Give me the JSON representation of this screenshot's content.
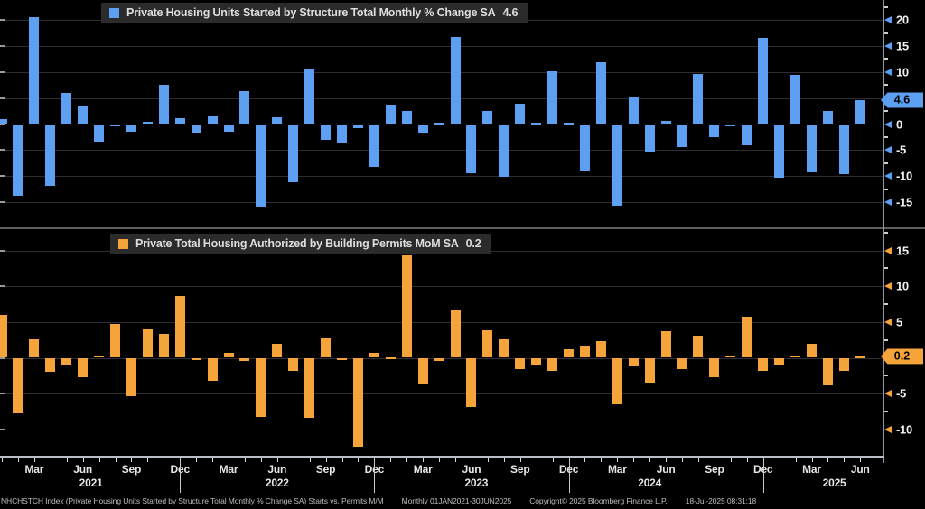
{
  "accent_colors": {
    "starts_blue": "#5d9ff0",
    "permits_orange": "#f5a43a",
    "grid": "#2f2f2f",
    "axis": "#8d9aa6"
  },
  "legends": {
    "starts": {
      "label": "Private Housing Units Started by Structure Total Monthly % Change SA",
      "value": "4.6",
      "swatch_color": "#5d9ff0"
    },
    "permits": {
      "label": "Private Total Housing Authorized by Building Permits MoM SA",
      "value": "0.2",
      "swatch_color": "#f5a43a"
    }
  },
  "chart_data": [
    {
      "id": "starts",
      "type": "bar",
      "title": "Private Housing Units Started by Structure Total Monthly % Change SA",
      "legend_position": "top-left-inside",
      "grid": true,
      "bar_color": "#5d9ff0",
      "ylim": [
        -19,
        24
      ],
      "yticks": [
        20,
        15,
        10,
        5,
        0,
        -5,
        -10,
        -15
      ],
      "hidden_tick_behind_badge": 5,
      "last_value_badge": "4.6",
      "last_value": 4.6,
      "categories": [
        "Jan 2021",
        "Feb 2021",
        "Mar 2021",
        "Apr 2021",
        "May 2021",
        "Jun 2021",
        "Jul 2021",
        "Aug 2021",
        "Sep 2021",
        "Oct 2021",
        "Nov 2021",
        "Dec 2021",
        "Jan 2022",
        "Feb 2022",
        "Mar 2022",
        "Apr 2022",
        "May 2022",
        "Jun 2022",
        "Jul 2022",
        "Aug 2022",
        "Sep 2022",
        "Oct 2022",
        "Nov 2022",
        "Dec 2022",
        "Jan 2023",
        "Feb 2023",
        "Mar 2023",
        "Apr 2023",
        "May 2023",
        "Jun 2023",
        "Jul 2023",
        "Aug 2023",
        "Sep 2023",
        "Oct 2023",
        "Nov 2023",
        "Dec 2023",
        "Jan 2024",
        "Feb 2024",
        "Mar 2024",
        "Apr 2024",
        "May 2024",
        "Jun 2024",
        "Jul 2024",
        "Aug 2024",
        "Sep 2024",
        "Oct 2024",
        "Nov 2024",
        "Dec 2024",
        "Jan 2025",
        "Feb 2025",
        "Mar 2025",
        "Apr 2025",
        "May 2025",
        "Jun 2025"
      ],
      "values": [
        1.0,
        -13.8,
        20.5,
        -11.9,
        5.9,
        3.5,
        -3.3,
        -0.4,
        -1.5,
        0.4,
        7.6,
        1.1,
        -1.7,
        1.7,
        -1.4,
        6.4,
        -15.8,
        1.3,
        -11.1,
        10.5,
        -3.0,
        -3.7,
        -0.7,
        -8.3,
        3.8,
        2.5,
        -1.7,
        0.3,
        16.8,
        -9.4,
        2.5,
        -10.1,
        3.9,
        0.3,
        10.2,
        0.2,
        -8.9,
        11.9,
        -15.7,
        5.2,
        -5.3,
        0.6,
        -4.4,
        9.6,
        -2.5,
        -0.5,
        -4.0,
        16.6,
        -10.3,
        9.5,
        -9.3,
        2.5,
        -9.7,
        4.6
      ]
    },
    {
      "id": "permits",
      "type": "bar",
      "title": "Private Total Housing Authorized by Building Permits MoM SA",
      "legend_position": "top-left-inside",
      "grid": true,
      "bar_color": "#f5a43a",
      "ylim": [
        -13.5,
        17.5
      ],
      "yticks": [
        15,
        10,
        5,
        0,
        -5,
        -10
      ],
      "hidden_tick_behind_badge": 0,
      "last_value_badge": "0.2",
      "last_value": 0.2,
      "categories": [
        "Jan 2021",
        "Feb 2021",
        "Mar 2021",
        "Apr 2021",
        "May 2021",
        "Jun 2021",
        "Jul 2021",
        "Aug 2021",
        "Sep 2021",
        "Oct 2021",
        "Nov 2021",
        "Dec 2021",
        "Jan 2022",
        "Feb 2022",
        "Mar 2022",
        "Apr 2022",
        "May 2022",
        "Jun 2022",
        "Jul 2022",
        "Aug 2022",
        "Sep 2022",
        "Oct 2022",
        "Nov 2022",
        "Dec 2022",
        "Jan 2023",
        "Feb 2023",
        "Mar 2023",
        "Apr 2023",
        "May 2023",
        "Jun 2023",
        "Jul 2023",
        "Aug 2023",
        "Sep 2023",
        "Oct 2023",
        "Nov 2023",
        "Dec 2023",
        "Jan 2024",
        "Feb 2024",
        "Mar 2024",
        "Apr 2024",
        "May 2024",
        "Jun 2024",
        "Jul 2024",
        "Aug 2024",
        "Sep 2024",
        "Oct 2024",
        "Nov 2024",
        "Dec 2024",
        "Jan 2025",
        "Feb 2025",
        "Mar 2025",
        "Apr 2025",
        "May 2025",
        "Jun 2025"
      ],
      "values": [
        6.0,
        -7.7,
        2.6,
        -1.9,
        -0.9,
        -2.7,
        0.3,
        4.7,
        -5.4,
        4.0,
        3.4,
        8.7,
        -0.1,
        -3.2,
        0.7,
        -0.4,
        -8.2,
        2.0,
        -1.8,
        -8.4,
        2.7,
        -0.2,
        -12.4,
        0.7,
        0.1,
        14.3,
        -3.7,
        -0.4,
        6.8,
        -6.9,
        3.9,
        2.6,
        -1.6,
        -0.9,
        -1.8,
        1.2,
        1.7,
        2.3,
        -6.5,
        -1.1,
        -3.5,
        3.7,
        -1.6,
        3.1,
        -2.7,
        0.3,
        5.8,
        -1.8,
        -1.0,
        0.3,
        2.0,
        -3.9,
        -1.8,
        0.2
      ]
    }
  ],
  "x_axis": {
    "month_labels": [
      {
        "label": "Mar",
        "mi": 2
      },
      {
        "label": "Jun",
        "mi": 5
      },
      {
        "label": "Sep",
        "mi": 8
      },
      {
        "label": "Dec",
        "mi": 11
      },
      {
        "label": "Mar",
        "mi": 14
      },
      {
        "label": "Jun",
        "mi": 17
      },
      {
        "label": "Sep",
        "mi": 20
      },
      {
        "label": "Dec",
        "mi": 23
      },
      {
        "label": "Mar",
        "mi": 26
      },
      {
        "label": "Jun",
        "mi": 29
      },
      {
        "label": "Sep",
        "mi": 32
      },
      {
        "label": "Dec",
        "mi": 35
      },
      {
        "label": "Mar",
        "mi": 38
      },
      {
        "label": "Jun",
        "mi": 41
      },
      {
        "label": "Sep",
        "mi": 44
      },
      {
        "label": "Dec",
        "mi": 47
      },
      {
        "label": "Mar",
        "mi": 50
      },
      {
        "label": "Jun",
        "mi": 53
      }
    ],
    "year_labels": [
      {
        "label": "2021",
        "mi": 5.5
      },
      {
        "label": "2022",
        "mi": 17.0
      },
      {
        "label": "2023",
        "mi": 29.3
      },
      {
        "label": "2024",
        "mi": 40.0
      },
      {
        "label": "2025",
        "mi": 51.4
      }
    ],
    "year_divider_mi": [
      11,
      23,
      35,
      47
    ]
  },
  "footer": {
    "description": "NHCHSTCH Index (Private Housing Units Started by Structure Total Monthly % Change SA) Starts vs. Permits M/M",
    "periodicity": "Monthly 01JAN2021-30JUN2025",
    "copyright": "Copyright© 2025 Bloomberg Finance L.P.",
    "timestamp": "18-Jul-2025 08:31:18"
  }
}
